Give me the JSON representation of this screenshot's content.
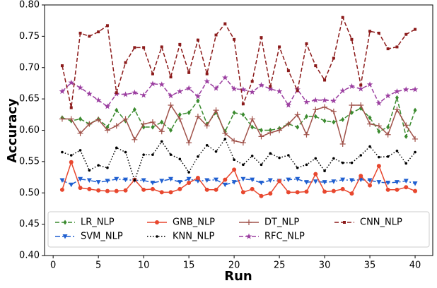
{
  "chart_data": {
    "type": "line",
    "x_label": "Run",
    "y_label": "Accuracy",
    "x": [
      1,
      2,
      3,
      4,
      5,
      6,
      7,
      8,
      9,
      10,
      11,
      12,
      13,
      14,
      15,
      16,
      17,
      18,
      19,
      20,
      21,
      22,
      23,
      24,
      25,
      26,
      27,
      28,
      29,
      30,
      31,
      32,
      33,
      34,
      35,
      36,
      37,
      38,
      39,
      40
    ],
    "xlim": [
      -0.95,
      41.95
    ],
    "xticks": [
      0,
      5,
      10,
      15,
      20,
      25,
      30,
      35,
      40
    ],
    "ylim": [
      0.4,
      0.8
    ],
    "yticks": [
      {
        "value": 0.4,
        "label": "0.40"
      },
      {
        "value": 0.45,
        "label": "0.45"
      },
      {
        "value": 0.5,
        "label": "0.50"
      },
      {
        "value": 0.55,
        "label": "0.55"
      },
      {
        "value": 0.6,
        "label": "0.60"
      },
      {
        "value": 0.65,
        "label": "0.65"
      },
      {
        "value": 0.7,
        "label": "0.70"
      },
      {
        "value": 0.75,
        "label": "0.75"
      },
      {
        "value": 0.8,
        "label": "0.80"
      }
    ],
    "legend": "lower center",
    "legend_columns": 4,
    "series": [
      {
        "name": "LR_NLP",
        "color": "#3a8a2e",
        "linestyle": "--",
        "marker": "d",
        "values": [
          0.62,
          0.615,
          0.618,
          0.61,
          0.618,
          0.605,
          0.632,
          0.615,
          0.633,
          0.605,
          0.605,
          0.613,
          0.6,
          0.625,
          0.628,
          0.647,
          0.61,
          0.628,
          0.598,
          0.628,
          0.625,
          0.605,
          0.6,
          0.6,
          0.603,
          0.61,
          0.605,
          0.622,
          0.622,
          0.615,
          0.613,
          0.617,
          0.628,
          0.635,
          0.62,
          0.598,
          0.605,
          0.652,
          0.59,
          0.632
        ]
      },
      {
        "name": "SVM_NLP",
        "color": "#1f5fd0",
        "linestyle": "-.",
        "marker": "v",
        "values": [
          0.52,
          0.513,
          0.522,
          0.52,
          0.517,
          0.519,
          0.522,
          0.521,
          0.52,
          0.52,
          0.516,
          0.519,
          0.522,
          0.517,
          0.522,
          0.519,
          0.52,
          0.521,
          0.513,
          0.517,
          0.522,
          0.521,
          0.516,
          0.52,
          0.519,
          0.521,
          0.522,
          0.517,
          0.518,
          0.517,
          0.518,
          0.521,
          0.52,
          0.521,
          0.52,
          0.517,
          0.516,
          0.517,
          0.519,
          0.515
        ]
      },
      {
        "name": "GNB_NLP",
        "color": "#e8472e",
        "linestyle": "-",
        "marker": "o",
        "values": [
          0.505,
          0.549,
          0.508,
          0.506,
          0.504,
          0.503,
          0.503,
          0.504,
          0.521,
          0.505,
          0.506,
          0.501,
          0.501,
          0.506,
          0.516,
          0.524,
          0.505,
          0.505,
          0.521,
          0.537,
          0.501,
          0.506,
          0.495,
          0.499,
          0.519,
          0.501,
          0.501,
          0.502,
          0.53,
          0.502,
          0.503,
          0.506,
          0.499,
          0.527,
          0.512,
          0.543,
          0.505,
          0.505,
          0.509,
          0.503
        ]
      },
      {
        "name": "KNN_NLP",
        "color": "#000000",
        "linestyle": ":",
        "marker": ".",
        "values": [
          0.565,
          0.56,
          0.568,
          0.536,
          0.544,
          0.54,
          0.572,
          0.565,
          0.52,
          0.561,
          0.561,
          0.582,
          0.561,
          0.554,
          0.533,
          0.558,
          0.576,
          0.566,
          0.586,
          0.553,
          0.545,
          0.559,
          0.545,
          0.563,
          0.556,
          0.56,
          0.54,
          0.545,
          0.555,
          0.535,
          0.555,
          0.548,
          0.548,
          0.56,
          0.574,
          0.557,
          0.558,
          0.567,
          0.547,
          0.565
        ]
      },
      {
        "name": "DT_NLP",
        "color": "#a0524a",
        "linestyle": "-",
        "marker": "+",
        "values": [
          0.618,
          0.618,
          0.595,
          0.61,
          0.617,
          0.6,
          0.607,
          0.618,
          0.585,
          0.61,
          0.613,
          0.598,
          0.64,
          0.618,
          0.58,
          0.622,
          0.607,
          0.632,
          0.595,
          0.583,
          0.58,
          0.618,
          0.59,
          0.596,
          0.6,
          0.61,
          0.625,
          0.593,
          0.633,
          0.637,
          0.63,
          0.578,
          0.64,
          0.64,
          0.61,
          0.607,
          0.593,
          0.633,
          0.608,
          0.586
        ]
      },
      {
        "name": "RFC_NLP",
        "color": "#9b3ea0",
        "linestyle": "--",
        "marker": "*",
        "values": [
          0.662,
          0.676,
          0.668,
          0.658,
          0.648,
          0.638,
          0.658,
          0.657,
          0.66,
          0.656,
          0.674,
          0.673,
          0.655,
          0.662,
          0.667,
          0.654,
          0.678,
          0.667,
          0.684,
          0.666,
          0.665,
          0.661,
          0.672,
          0.666,
          0.662,
          0.64,
          0.665,
          0.645,
          0.648,
          0.648,
          0.647,
          0.663,
          0.67,
          0.666,
          0.673,
          0.643,
          0.655,
          0.662,
          0.665,
          0.665
        ]
      },
      {
        "name": "CNN_NLP",
        "color": "#8b1a1a",
        "linestyle": "--",
        "marker": "s",
        "values": [
          0.703,
          0.636,
          0.755,
          0.75,
          0.757,
          0.767,
          0.66,
          0.708,
          0.732,
          0.732,
          0.69,
          0.733,
          0.685,
          0.737,
          0.692,
          0.744,
          0.69,
          0.752,
          0.77,
          0.745,
          0.642,
          0.678,
          0.748,
          0.67,
          0.733,
          0.695,
          0.663,
          0.738,
          0.703,
          0.68,
          0.715,
          0.78,
          0.745,
          0.672,
          0.758,
          0.755,
          0.73,
          0.733,
          0.753,
          0.761
        ]
      }
    ]
  }
}
